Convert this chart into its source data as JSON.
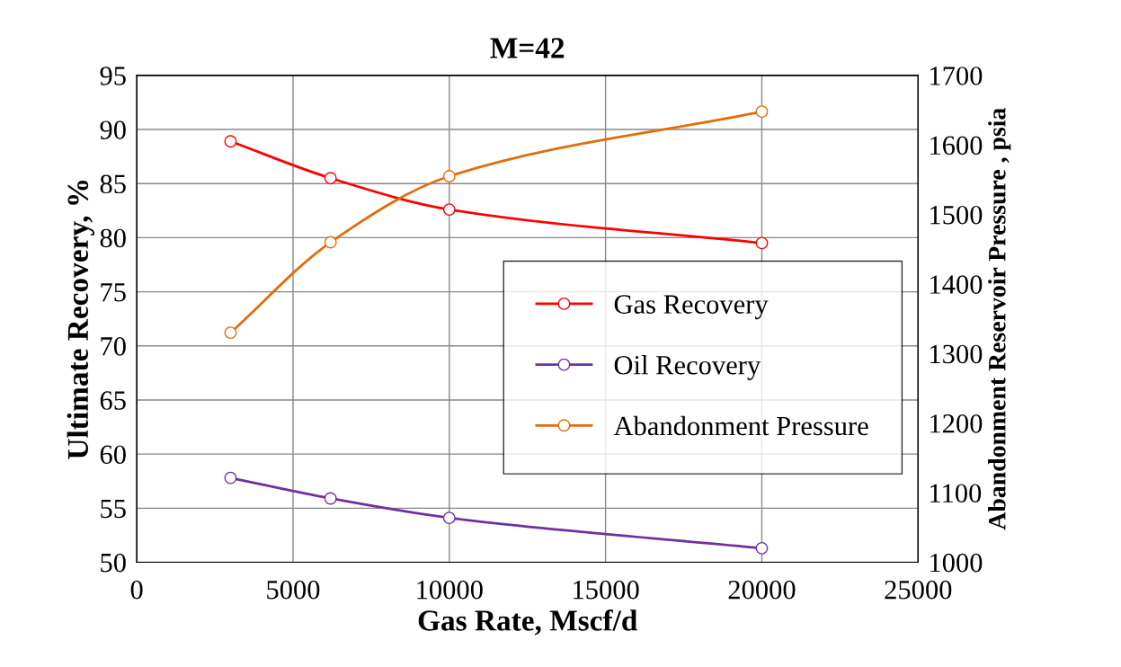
{
  "chart_data": {
    "type": "line",
    "title": "M=42",
    "xlabel": "Gas Rate, Mscf/d",
    "ylabel": "Ultimate Recovery, %",
    "y2label": "Abandonment Reservoir Pressure , psia",
    "x": [
      3000,
      6200,
      10000,
      20000
    ],
    "series": [
      {
        "name": "Gas Recovery",
        "color": "#ff0000",
        "values": [
          88.9,
          85.5,
          82.6,
          79.5
        ]
      },
      {
        "name": "Oil Recovery",
        "color": "#7030a0",
        "values": [
          57.8,
          55.9,
          54.1,
          51.3
        ]
      },
      {
        "name": "Abandonment Pressure",
        "color": "#e46c0a",
        "axis": "y2",
        "values": [
          1330,
          1460,
          1555,
          1648
        ]
      }
    ],
    "xlim": [
      0,
      25000
    ],
    "xticks": [
      0,
      5000,
      10000,
      15000,
      20000,
      25000
    ],
    "ylim": [
      50,
      95
    ],
    "yticks": [
      50,
      55,
      60,
      65,
      70,
      75,
      80,
      85,
      90,
      95
    ],
    "y2lim": [
      1000,
      1700
    ],
    "y2ticks": [
      1000,
      1100,
      1200,
      1300,
      1400,
      1500,
      1600,
      1700
    ],
    "grid": true,
    "legend": "right",
    "marker": "circle",
    "line_style": "solid"
  }
}
